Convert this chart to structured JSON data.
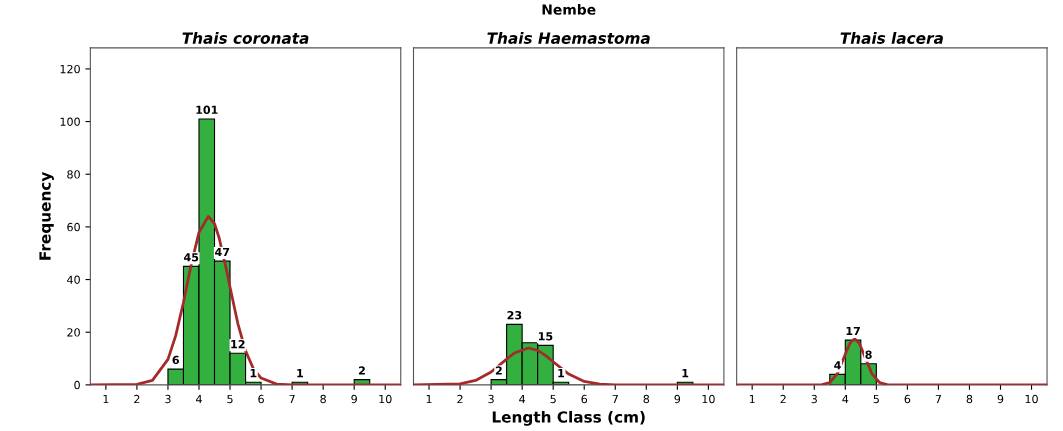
{
  "chart_data": [
    {
      "type": "histogram",
      "title": "Thais coronata",
      "ylabel": "Frequency",
      "color": "#33b040",
      "bins": [
        3.0,
        3.5,
        4.0,
        4.5,
        5.0,
        5.5,
        6.0,
        6.5,
        7.0,
        7.5,
        8.0,
        8.5,
        9.0,
        9.5
      ],
      "values": [
        6,
        45,
        101,
        47,
        12,
        1,
        0,
        0,
        1,
        0,
        0,
        0,
        2
      ],
      "value_labels": [
        "6",
        "45",
        "101",
        "47",
        "12",
        "1",
        null,
        null,
        "1",
        null,
        null,
        null,
        "2"
      ],
      "series": [
        {
          "type": "line",
          "color": "#a52a2a",
          "x": [
            0.5,
            2,
            2.5,
            3,
            3.25,
            3.5,
            3.75,
            4,
            4.3,
            4.5,
            4.65,
            4.9,
            5,
            5.25,
            5.5,
            5.75,
            6,
            6.5,
            7,
            10.5
          ],
          "values": [
            0,
            0.2,
            1.7,
            9.7,
            18.7,
            31.4,
            45.7,
            57.9,
            64,
            61.2,
            55.8,
            42.9,
            37.1,
            23.4,
            12.9,
            6.2,
            2.6,
            0.3,
            0,
            0
          ]
        }
      ],
      "xlim": [
        0.5,
        10.5
      ],
      "xticks": [
        1,
        2,
        3,
        4,
        5,
        6,
        7,
        8,
        9,
        10
      ],
      "ylim": [
        0,
        128
      ],
      "yticks": [
        0,
        20,
        40,
        60,
        80,
        100,
        120
      ],
      "grid": false
    },
    {
      "type": "histogram",
      "title": "Thais Haemastoma",
      "xlabel": "Length Class (cm)",
      "annotations": [
        "Nembe"
      ],
      "color": "#33b040",
      "bins": [
        3.0,
        3.5,
        4.0,
        4.5,
        5.0,
        5.5,
        6.0,
        6.5,
        7.0,
        7.5,
        8.0,
        8.5,
        9.0,
        9.5
      ],
      "values": [
        2,
        23,
        16,
        15,
        1,
        0,
        0,
        0,
        0,
        0,
        0,
        0,
        1
      ],
      "value_labels": [
        "2",
        "23",
        null,
        "15",
        "1",
        null,
        null,
        null,
        null,
        null,
        null,
        null,
        "1"
      ],
      "series": [
        {
          "type": "line",
          "color": "#a52a2a",
          "x": [
            0.5,
            2,
            2.5,
            3,
            3.5,
            3.75,
            4.2,
            4.5,
            4.75,
            5,
            5.5,
            6,
            6.5,
            7,
            10.5
          ],
          "values": [
            0,
            0.4,
            1.7,
            4.9,
            9.8,
            12.1,
            14,
            13.1,
            11.2,
            8.8,
            4.1,
            1.3,
            0.3,
            0,
            0
          ]
        }
      ],
      "xlim": [
        0.5,
        10.5
      ],
      "xticks": [
        1,
        2,
        3,
        4,
        5,
        6,
        7,
        8,
        9,
        10
      ],
      "ylim": [
        0,
        128
      ],
      "yticks": [
        0,
        20,
        40,
        60,
        80,
        100,
        120
      ],
      "tick_labels": "x",
      "grid": false
    },
    {
      "type": "histogram",
      "title": "Thais lacera",
      "color": "#33b040",
      "bins": [
        3.5,
        4.0,
        4.5,
        5.0
      ],
      "values": [
        4,
        17,
        8
      ],
      "value_labels": [
        "4",
        "17",
        "8"
      ],
      "series": [
        {
          "type": "line",
          "color": "#a52a2a",
          "x": [
            0.5,
            3,
            3.25,
            3.5,
            3.75,
            4,
            4.15,
            4.3,
            4.45,
            4.6,
            4.85,
            5.1,
            5.35,
            5.6,
            10.5
          ],
          "values": [
            0,
            0,
            0.1,
            0.9,
            4.4,
            11.6,
            15.8,
            17.5,
            15.8,
            11.6,
            4.4,
            0.9,
            0.1,
            0,
            0
          ]
        }
      ],
      "xlim": [
        0.5,
        10.5
      ],
      "xticks": [
        1,
        2,
        3,
        4,
        5,
        6,
        7,
        8,
        9,
        10
      ],
      "ylim": [
        0,
        128
      ],
      "yticks": [
        0,
        20,
        40,
        60,
        80,
        100,
        120
      ],
      "tick_labels": "x",
      "grid": false
    }
  ]
}
